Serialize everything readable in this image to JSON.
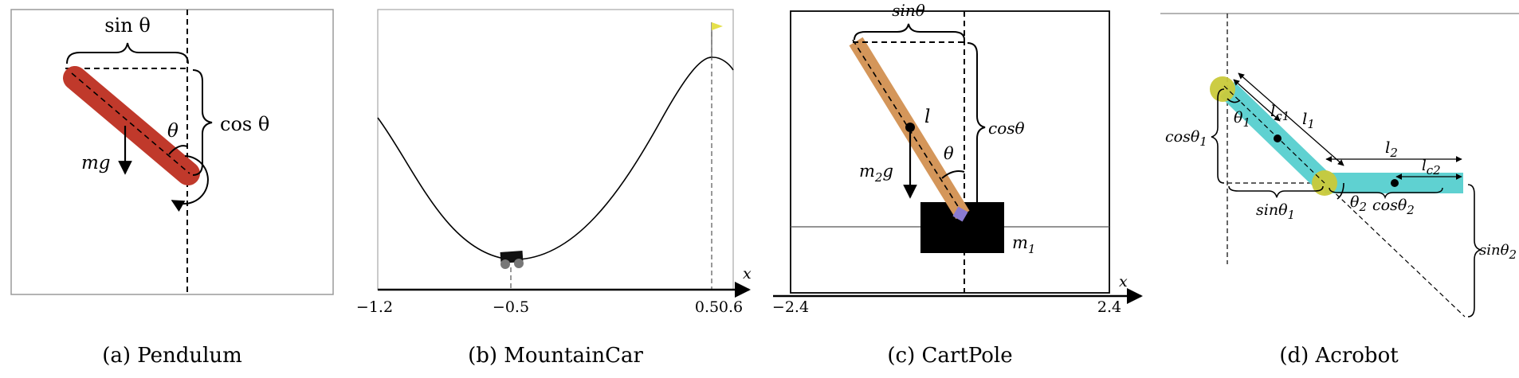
{
  "panels": {
    "pendulum": {
      "caption": "(a) Pendulum",
      "label_sin": "sin θ",
      "label_cos": "cos θ",
      "label_theta": "θ",
      "label_mg": "mg",
      "colors": {
        "rod": "#c0392b"
      }
    },
    "mountaincar": {
      "caption": "(b) MountainCar",
      "axis_label": "x",
      "ticks": [
        "−1.2",
        "−0.5",
        "0.5",
        "0.6"
      ],
      "colors": {
        "flag": "#e5e04a"
      }
    },
    "cartpole": {
      "caption": "(c) CartPole",
      "label_sin": "sinθ",
      "label_cos": "cosθ",
      "label_l": "l",
      "label_theta": "θ",
      "label_m2g_main": "m",
      "label_m2g_sub": "2",
      "label_m2g_end": "g",
      "label_m1_main": "m",
      "label_m1_sub": "1",
      "axis_label": "x",
      "ticks": [
        "−2.4",
        "2.4"
      ],
      "colors": {
        "pole": "#d4965a",
        "cart": "#000000",
        "joint": "#8a7ad0"
      }
    },
    "acrobot": {
      "caption": "(d) Acrobot",
      "label_cos1_main": "cosθ",
      "label_cos1_sub": "1",
      "label_theta1_main": "θ",
      "label_theta1_sub": "1",
      "label_lc1_main": "l",
      "label_lc1_sub": "c1",
      "label_l1_main": "l",
      "label_l1_sub": "1",
      "label_l2_main": "l",
      "label_l2_sub": "2",
      "label_lc2_main": "l",
      "label_lc2_sub": "c2",
      "label_sin1_main": "sinθ",
      "label_sin1_sub": "1",
      "label_theta2_main": "θ",
      "label_theta2_sub": "2",
      "label_cos2_main": "cosθ",
      "label_cos2_sub": "2",
      "label_sin2_main": "sinθ",
      "label_sin2_sub": "2",
      "colors": {
        "link": "#5fd1d1",
        "joint": "#c9c93a"
      }
    }
  }
}
